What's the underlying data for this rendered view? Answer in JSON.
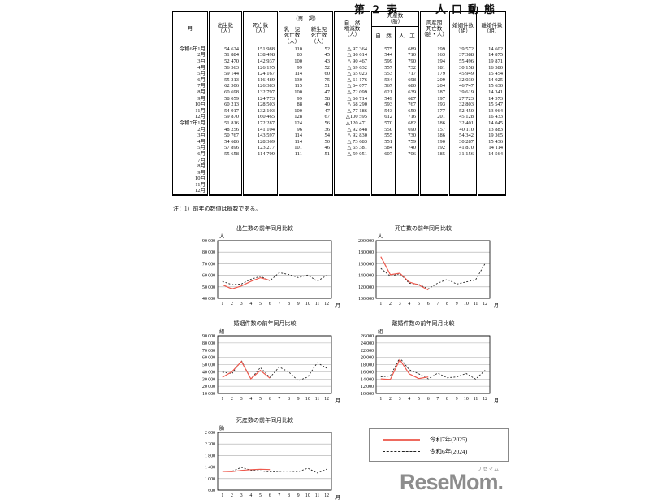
{
  "page": {
    "title": "第２表　　人口動態",
    "note": "注：1）前年の数値は概数である。"
  },
  "table": {
    "headers": {
      "month": "月",
      "births": "出生数\n（人）",
      "deaths": "死亡数\n（人）",
      "saikei": "（再　掲）",
      "infant": "乳　児\n死亡数\n（人）",
      "neonatal": "新生児\n死亡数\n（人）",
      "natural_change": "自　然\n増減数\n（人）",
      "stillbirth_group": "死産数\n（胎）",
      "natural": "自　然",
      "artificial": "人　工",
      "perinatal": "周産期\n死亡数\n（胎・人）",
      "marriages": "婚姻件数\n（組）",
      "divorces": "離婚件数\n（組）"
    },
    "rows": [
      {
        "label": "令和6年1月",
        "gap": false,
        "cells": [
          "54 624",
          "151 988",
          "110",
          "52",
          "△ 97 364",
          "575",
          "689",
          "199",
          "39 572",
          "14 602"
        ]
      },
      {
        "label": "2月",
        "gap": false,
        "cells": [
          "51 884",
          "138 498",
          "83",
          "45",
          "△ 86 614",
          "544",
          "710",
          "163",
          "37 388",
          "14 875"
        ]
      },
      {
        "label": "3月",
        "gap": false,
        "cells": [
          "52 470",
          "142 937",
          "100",
          "43",
          "△ 90 467",
          "599",
          "790",
          "194",
          "55 496",
          "19 871"
        ]
      },
      {
        "label": "4月",
        "gap": false,
        "cells": [
          "56 563",
          "126 195",
          "99",
          "52",
          "△ 69 632",
          "557",
          "732",
          "181",
          "30 158",
          "16 580"
        ]
      },
      {
        "label": "5月",
        "gap": false,
        "cells": [
          "59 144",
          "124 167",
          "114",
          "60",
          "△ 65 023",
          "553",
          "717",
          "179",
          "45 949",
          "15 454"
        ]
      },
      {
        "label": "6月",
        "gap": false,
        "cells": [
          "55 313",
          "116 489",
          "130",
          "75",
          "△ 61 176",
          "534",
          "698",
          "209",
          "32 030",
          "14 025"
        ]
      },
      {
        "label": "7月",
        "gap": true,
        "cells": [
          "62 306",
          "126 383",
          "115",
          "51",
          "△ 64 077",
          "567",
          "680",
          "204",
          "46 747",
          "15 630"
        ]
      },
      {
        "label": "8月",
        "gap": false,
        "cells": [
          "60 698",
          "132 797",
          "100",
          "47",
          "△ 72 099",
          "621",
          "639",
          "187",
          "39 619",
          "14 341"
        ]
      },
      {
        "label": "9月",
        "gap": false,
        "cells": [
          "58 059",
          "124 773",
          "99",
          "58",
          "△ 66 714",
          "549",
          "687",
          "197",
          "27 723",
          "14 573"
        ]
      },
      {
        "label": "10月",
        "gap": false,
        "cells": [
          "60 213",
          "128 503",
          "88",
          "40",
          "△ 68 290",
          "593",
          "767",
          "193",
          "32 803",
          "15 547"
        ]
      },
      {
        "label": "11月",
        "gap": false,
        "cells": [
          "54 917",
          "132 103",
          "100",
          "47",
          "△ 77 186",
          "543",
          "650",
          "177",
          "52 450",
          "13 964"
        ]
      },
      {
        "label": "12月",
        "gap": false,
        "cells": [
          "59 870",
          "160 465",
          "128",
          "67",
          "△100 595",
          "612",
          "716",
          "201",
          "45 128",
          "16 433"
        ]
      },
      {
        "label": "令和7年1月",
        "gap": true,
        "cells": [
          "51 816",
          "172 287",
          "124",
          "56",
          "△120 471",
          "570",
          "682",
          "186",
          "32 401",
          "14 045"
        ]
      },
      {
        "label": "2月",
        "gap": false,
        "cells": [
          "48 256",
          "141 104",
          "96",
          "36",
          "△ 92 848",
          "550",
          "690",
          "157",
          "40 110",
          "13 883"
        ]
      },
      {
        "label": "3月",
        "gap": false,
        "cells": [
          "50 767",
          "143 597",
          "114",
          "54",
          "△ 92 830",
          "555",
          "730",
          "186",
          "54 342",
          "19 365"
        ]
      },
      {
        "label": "4月",
        "gap": false,
        "cells": [
          "54 686",
          "128 369",
          "114",
          "50",
          "△ 73 683",
          "551",
          "759",
          "190",
          "30 287",
          "15 436"
        ]
      },
      {
        "label": "5月",
        "gap": false,
        "cells": [
          "57 896",
          "123 277",
          "101",
          "46",
          "△ 65 381",
          "584",
          "740",
          "192",
          "41 870",
          "14 114"
        ]
      },
      {
        "label": "6月",
        "gap": false,
        "cells": [
          "55 658",
          "114 709",
          "111",
          "51",
          "△ 59 051",
          "607",
          "706",
          "185",
          "31 156",
          "14 564"
        ]
      },
      {
        "label": "7月",
        "gap": true,
        "cells": [
          "",
          "",
          "",
          "",
          "",
          "",
          "",
          "",
          "",
          ""
        ]
      },
      {
        "label": "8月",
        "gap": false,
        "cells": [
          "",
          "",
          "",
          "",
          "",
          "",
          "",
          "",
          "",
          ""
        ]
      },
      {
        "label": "9月",
        "gap": false,
        "cells": [
          "",
          "",
          "",
          "",
          "",
          "",
          "",
          "",
          "",
          ""
        ]
      },
      {
        "label": "10月",
        "gap": false,
        "cells": [
          "",
          "",
          "",
          "",
          "",
          "",
          "",
          "",
          "",
          ""
        ]
      },
      {
        "label": "11月",
        "gap": false,
        "cells": [
          "",
          "",
          "",
          "",
          "",
          "",
          "",
          "",
          "",
          ""
        ]
      },
      {
        "label": "12月",
        "gap": false,
        "cells": [
          "",
          "",
          "",
          "",
          "",
          "",
          "",
          "",
          "",
          ""
        ]
      }
    ]
  },
  "chart_data": [
    {
      "type": "line",
      "title": "出生数の前年同月比較",
      "unit": "人",
      "xlabel": "月",
      "x": [
        1,
        2,
        3,
        4,
        5,
        6,
        7,
        8,
        9,
        10,
        11,
        12
      ],
      "ylim": [
        40000,
        90000
      ],
      "ytick": 10000,
      "series": [
        {
          "name": "令和7年(2025)",
          "color": "#ee5a4e",
          "dash": "none",
          "values": [
            51816,
            48256,
            50767,
            54686,
            57896,
            55658
          ]
        },
        {
          "name": "令和6年(2024)",
          "color": "#222222",
          "dash": "2 2",
          "values": [
            54624,
            51884,
            52470,
            56563,
            59144,
            55313,
            62306,
            60698,
            58059,
            60213,
            54917,
            59870
          ]
        }
      ]
    },
    {
      "type": "line",
      "title": "死亡数の前年同月比較",
      "unit": "人",
      "xlabel": "月",
      "x": [
        1,
        2,
        3,
        4,
        5,
        6,
        7,
        8,
        9,
        10,
        11,
        12
      ],
      "ylim": [
        100000,
        200000
      ],
      "ytick": 20000,
      "series": [
        {
          "name": "令和7年(2025)",
          "color": "#ee5a4e",
          "dash": "none",
          "values": [
            172287,
            141104,
            143597,
            128369,
            123277,
            114709
          ]
        },
        {
          "name": "令和6年(2024)",
          "color": "#222222",
          "dash": "2 2",
          "values": [
            151988,
            138498,
            142937,
            126195,
            124167,
            116489,
            126383,
            132797,
            124773,
            128503,
            132103,
            160465
          ]
        }
      ]
    },
    {
      "type": "line",
      "title": "婚姻件数の前年同月比較",
      "unit": "組",
      "xlabel": "月",
      "x": [
        1,
        2,
        3,
        4,
        5,
        6,
        7,
        8,
        9,
        10,
        11,
        12
      ],
      "ylim": [
        10000,
        90000
      ],
      "ytick": 10000,
      "series": [
        {
          "name": "令和7年(2025)",
          "color": "#ee5a4e",
          "dash": "none",
          "values": [
            32401,
            40110,
            54342,
            30287,
            41870,
            31156
          ]
        },
        {
          "name": "令和6年(2024)",
          "color": "#222222",
          "dash": "2 2",
          "values": [
            39572,
            37388,
            55496,
            30158,
            45949,
            32030,
            46747,
            39619,
            27723,
            32803,
            52450,
            45128
          ]
        }
      ]
    },
    {
      "type": "line",
      "title": "離婚件数の前年同月比較",
      "unit": "組",
      "xlabel": "月",
      "x": [
        1,
        2,
        3,
        4,
        5,
        6,
        7,
        8,
        9,
        10,
        11,
        12
      ],
      "ylim": [
        10000,
        26000
      ],
      "ytick": 2000,
      "series": [
        {
          "name": "令和7年(2025)",
          "color": "#ee5a4e",
          "dash": "none",
          "values": [
            14045,
            13883,
            19365,
            15436,
            14114,
            14564
          ]
        },
        {
          "name": "令和6年(2024)",
          "color": "#222222",
          "dash": "2 2",
          "values": [
            14602,
            14875,
            19871,
            16580,
            15454,
            14025,
            15630,
            14341,
            14573,
            15547,
            13964,
            16433
          ]
        }
      ]
    },
    {
      "type": "line",
      "title": "死産数の前年同月比較",
      "unit": "胎",
      "xlabel": "月",
      "x": [
        1,
        2,
        3,
        4,
        5,
        6,
        7,
        8,
        9,
        10,
        11,
        12
      ],
      "ylim": [
        600,
        2600
      ],
      "ytick": 400,
      "series": [
        {
          "name": "令和7年(2025)",
          "color": "#ee5a4e",
          "dash": "none",
          "values": [
            1252,
            1240,
            1285,
            1310,
            1324,
            1313
          ]
        },
        {
          "name": "令和6年(2024)",
          "color": "#222222",
          "dash": "2 2",
          "values": [
            1264,
            1254,
            1389,
            1289,
            1270,
            1232,
            1247,
            1260,
            1236,
            1360,
            1193,
            1328
          ]
        }
      ]
    }
  ],
  "legend": {
    "items": [
      {
        "label": "令和7年(2025)",
        "color": "#ee6a5e",
        "style": "solid"
      },
      {
        "label": "令和6年(2024)",
        "color": "#222222",
        "style": "dashed"
      }
    ]
  },
  "logo": {
    "text": "ReseMom.",
    "kana": "リセマム",
    "color": "#8d8d8d"
  }
}
